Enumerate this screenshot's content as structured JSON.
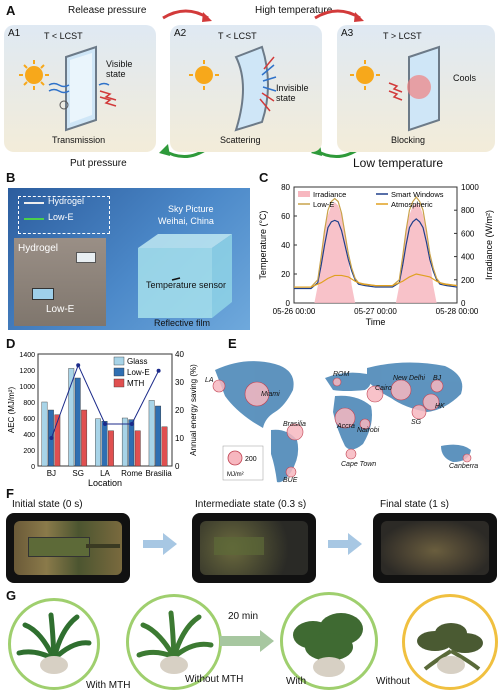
{
  "panelA": {
    "label": "A",
    "top_left": "Release pressure",
    "top_right": "High temperature",
    "bottom_left": "Put pressure",
    "bottom_right": "Low temperature",
    "cards": [
      {
        "id": "A1",
        "cond": "T < LCST",
        "side": "Visible state",
        "name": "Transmission"
      },
      {
        "id": "A2",
        "cond": "T < LCST",
        "side": "Invisible state",
        "name": "Scattering"
      },
      {
        "id": "A3",
        "cond": "T > LCST",
        "side": "Cools",
        "name": "Blocking"
      }
    ]
  },
  "panelB": {
    "label": "B",
    "legend": [
      "Hydrogel",
      "Low-E"
    ],
    "sky": "Sky Picture",
    "place": "Weihai, China",
    "photo_labels": [
      "Hydrogel",
      "Low-E"
    ],
    "sensor": "Temperature sensor",
    "film": "Reflective film"
  },
  "panelD": {
    "label": "D"
  },
  "panelE": {
    "label": "E",
    "cities": [
      "LA",
      "Miami",
      "ROM",
      "New Delhi",
      "BJ",
      "Cairo",
      "HK",
      "Brasilia",
      "Accra",
      "Nairobi",
      "SG",
      "BUE",
      "Cape Town",
      "Canberra"
    ],
    "scale_value": "200",
    "scale_unit": "MJ/m²"
  },
  "panelF": {
    "label": "F",
    "states": [
      "Initial state (0 s)",
      "Intermediate state (0.3 s)",
      "Final state (1 s)"
    ]
  },
  "panelG": {
    "label": "G",
    "captions": [
      "With MTH",
      "Without MTH",
      "With",
      "Without"
    ],
    "time": "20 min"
  },
  "chart_data": [
    {
      "type": "line",
      "panel": "C",
      "label": "C",
      "xlabel": "Time",
      "ylabel": "Temperature (°C)",
      "y2label": "Irradiance (W/m²)",
      "xticks": [
        "05-26 00:00",
        "05-27 00:00",
        "05-28 00:00"
      ],
      "ylim": [
        0,
        80
      ],
      "yticks": [
        0,
        20,
        40,
        60,
        80
      ],
      "y2lim": [
        0,
        1000
      ],
      "y2ticks": [
        0,
        200,
        400,
        600,
        800,
        1000
      ],
      "x_hours": [
        0,
        48
      ],
      "legend": [
        "Irradiance",
        "Smart Windows",
        "Low-E",
        "Atmospheric"
      ],
      "series": [
        {
          "name": "Irradiance",
          "axis": "y2",
          "color": "#f7b7bf",
          "x": [
            0,
            6,
            7,
            8,
            9,
            10,
            11,
            12,
            13,
            14,
            15,
            16,
            17,
            18,
            19,
            24,
            30,
            31,
            32,
            33,
            34,
            35,
            36,
            37,
            38,
            39,
            40,
            41,
            42,
            43,
            48
          ],
          "values": [
            0,
            0,
            150,
            400,
            620,
            760,
            840,
            870,
            840,
            760,
            600,
            380,
            150,
            0,
            0,
            0,
            0,
            150,
            400,
            620,
            760,
            840,
            860,
            840,
            760,
            600,
            380,
            150,
            0,
            0,
            0
          ]
        },
        {
          "name": "Smart Windows",
          "axis": "y",
          "color": "#1f3f8a",
          "x": [
            0,
            5,
            7,
            8,
            9,
            10,
            11,
            12,
            13,
            14,
            15,
            16,
            17,
            18,
            19,
            21,
            24,
            29,
            31,
            32,
            33,
            34,
            35,
            36,
            37,
            38,
            39,
            40,
            41,
            42,
            43,
            45,
            48
          ],
          "values": [
            10,
            10,
            14,
            26,
            40,
            52,
            56,
            57,
            56,
            50,
            40,
            30,
            22,
            16,
            13,
            12,
            11,
            11,
            14,
            26,
            40,
            52,
            56,
            58,
            56,
            52,
            42,
            30,
            22,
            16,
            13,
            12,
            11
          ]
        },
        {
          "name": "Low-E",
          "axis": "y",
          "color": "#c9a24a",
          "x": [
            0,
            5,
            7,
            8,
            9,
            10,
            11,
            12,
            13,
            14,
            15,
            16,
            17,
            18,
            19,
            21,
            24,
            29,
            31,
            32,
            33,
            34,
            35,
            36,
            37,
            38,
            39,
            40,
            41,
            42,
            43,
            45,
            48
          ],
          "values": [
            11,
            11,
            16,
            32,
            50,
            64,
            70,
            72,
            70,
            62,
            48,
            34,
            24,
            17,
            14,
            13,
            12,
            12,
            16,
            32,
            50,
            64,
            70,
            73,
            70,
            64,
            50,
            34,
            24,
            17,
            14,
            13,
            12
          ]
        },
        {
          "name": "Atmospheric",
          "axis": "y",
          "color": "#e0a020",
          "x": [
            0,
            5,
            8,
            10,
            12,
            14,
            16,
            18,
            20,
            24,
            29,
            32,
            34,
            36,
            38,
            40,
            42,
            44,
            48
          ],
          "values": [
            11,
            11,
            14,
            17,
            19,
            19,
            18,
            15,
            13,
            12,
            12,
            15,
            18,
            20,
            19,
            18,
            15,
            13,
            12
          ]
        }
      ]
    },
    {
      "type": "bar",
      "panel": "D",
      "xlabel": "Location",
      "ylabel": "AEC (MJ/m²)",
      "y2label": "Annual energy saving (%)",
      "categories": [
        "BJ",
        "SG",
        "LA",
        "Rome",
        "Brasilia"
      ],
      "ylim": [
        0,
        1400
      ],
      "yticks": [
        0,
        200,
        400,
        600,
        800,
        1000,
        1200,
        1400
      ],
      "y2lim": [
        0,
        40
      ],
      "y2ticks": [
        0,
        10,
        20,
        30,
        40
      ],
      "legend": [
        "Glass",
        "Low-E",
        "MTH"
      ],
      "series": [
        {
          "name": "Glass",
          "color": "#a8d4e8",
          "values": [
            800,
            1220,
            590,
            600,
            820
          ]
        },
        {
          "name": "Low-E",
          "color": "#2f6fb2",
          "values": [
            700,
            1100,
            560,
            580,
            750
          ]
        },
        {
          "name": "MTH",
          "color": "#e05050",
          "values": [
            640,
            700,
            440,
            440,
            490
          ]
        }
      ],
      "saving_series": {
        "axis": "y2",
        "color": "#1b2a8a",
        "values": [
          10,
          36,
          15,
          15,
          34
        ]
      }
    }
  ]
}
